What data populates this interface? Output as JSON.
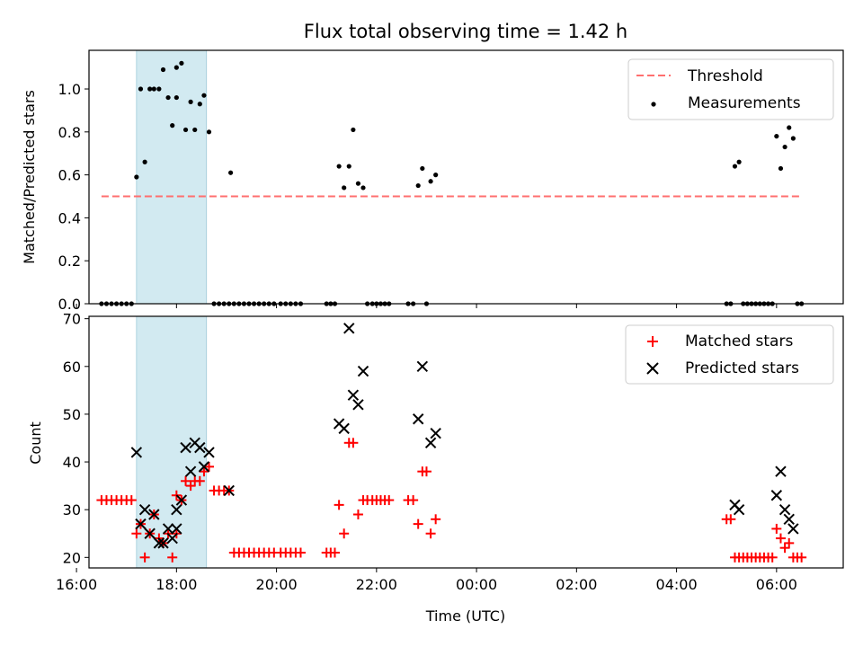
{
  "chart_data": [
    {
      "type": "scatter",
      "title": "Flux total observing time = 1.42 h",
      "xlabel": "",
      "ylabel": "Matched/Predicted stars",
      "ylim": [
        0,
        1.18
      ],
      "xlim": [
        "16:15",
        "07:20"
      ],
      "yticks": [
        "0.0",
        "0.2",
        "0.4",
        "0.6",
        "0.8",
        "1.0"
      ],
      "highlight_span": {
        "from": "17:12",
        "to": "18:36",
        "color": "#add8e6"
      },
      "threshold": {
        "name": "Threshold",
        "value": 0.5,
        "from": "16:30",
        "to": "06:30",
        "color": "#ff6f6f",
        "style": "dashed"
      },
      "legend": {
        "position": "upper right",
        "entries": [
          "Threshold",
          "Measurements"
        ]
      },
      "series": [
        {
          "name": "Measurements",
          "color": "#000000",
          "points": [
            [
              "16:30",
              0
            ],
            [
              "16:36",
              0
            ],
            [
              "16:42",
              0
            ],
            [
              "16:48",
              0
            ],
            [
              "16:54",
              0
            ],
            [
              "17:00",
              0
            ],
            [
              "17:06",
              0
            ],
            [
              "17:12",
              0.59
            ],
            [
              "17:17",
              1.0
            ],
            [
              "17:22",
              0.66
            ],
            [
              "17:28",
              1.0
            ],
            [
              "17:33",
              1.0
            ],
            [
              "17:39",
              1.0
            ],
            [
              "17:44",
              1.09
            ],
            [
              "17:50",
              0.96
            ],
            [
              "17:55",
              0.83
            ],
            [
              "18:00",
              0.96
            ],
            [
              "18:00",
              1.1
            ],
            [
              "18:06",
              1.12
            ],
            [
              "18:11",
              0.81
            ],
            [
              "18:17",
              0.94
            ],
            [
              "18:22",
              0.81
            ],
            [
              "18:28",
              0.93
            ],
            [
              "18:33",
              0.97
            ],
            [
              "18:39",
              0.8
            ],
            [
              "18:45",
              0
            ],
            [
              "18:51",
              0
            ],
            [
              "18:57",
              0
            ],
            [
              "19:03",
              0
            ],
            [
              "19:05",
              0.61
            ],
            [
              "19:09",
              0
            ],
            [
              "19:15",
              0
            ],
            [
              "19:21",
              0
            ],
            [
              "19:27",
              0
            ],
            [
              "19:33",
              0
            ],
            [
              "19:39",
              0
            ],
            [
              "19:45",
              0
            ],
            [
              "19:51",
              0
            ],
            [
              "19:57",
              0
            ],
            [
              "20:05",
              0
            ],
            [
              "20:11",
              0
            ],
            [
              "20:17",
              0
            ],
            [
              "20:23",
              0
            ],
            [
              "20:29",
              0
            ],
            [
              "21:00",
              0
            ],
            [
              "21:05",
              0
            ],
            [
              "21:10",
              0
            ],
            [
              "21:15",
              0.64
            ],
            [
              "21:21",
              0.54
            ],
            [
              "21:27",
              0.64
            ],
            [
              "21:32",
              0.81
            ],
            [
              "21:38",
              0.56
            ],
            [
              "21:44",
              0.54
            ],
            [
              "21:49",
              0
            ],
            [
              "21:55",
              0
            ],
            [
              "22:00",
              0
            ],
            [
              "22:05",
              0
            ],
            [
              "22:10",
              0
            ],
            [
              "22:15",
              0
            ],
            [
              "22:38",
              0
            ],
            [
              "22:44",
              0
            ],
            [
              "22:50",
              0.55
            ],
            [
              "22:55",
              0.63
            ],
            [
              "23:00",
              0
            ],
            [
              "23:05",
              0.57
            ],
            [
              "23:11",
              0.6
            ],
            [
              "05:00",
              0
            ],
            [
              "05:05",
              0
            ],
            [
              "05:10",
              0.64
            ],
            [
              "05:15",
              0.66
            ],
            [
              "05:20",
              0
            ],
            [
              "05:25",
              0
            ],
            [
              "05:30",
              0
            ],
            [
              "05:35",
              0
            ],
            [
              "05:40",
              0
            ],
            [
              "05:45",
              0
            ],
            [
              "05:50",
              0
            ],
            [
              "05:55",
              0
            ],
            [
              "06:00",
              0.78
            ],
            [
              "06:05",
              0.63
            ],
            [
              "06:10",
              0.73
            ],
            [
              "06:15",
              0.82
            ],
            [
              "06:20",
              0.77
            ],
            [
              "06:25",
              0
            ],
            [
              "06:30",
              0
            ]
          ]
        }
      ]
    },
    {
      "type": "scatter",
      "title": "",
      "xlabel": "Time (UTC)",
      "ylabel": "Count",
      "ylim": [
        17.8,
        70.5
      ],
      "xlim": [
        "16:15",
        "07:20"
      ],
      "yticks": [
        "20",
        "30",
        "40",
        "50",
        "60",
        "70"
      ],
      "xticks": [
        "16:00",
        "18:00",
        "20:00",
        "22:00",
        "00:00",
        "02:00",
        "04:00",
        "06:00"
      ],
      "highlight_span": {
        "from": "17:12",
        "to": "18:36",
        "color": "#add8e6"
      },
      "legend": {
        "position": "upper right",
        "entries": [
          "Matched stars",
          "Predicted stars"
        ]
      },
      "series": [
        {
          "name": "Matched stars",
          "marker": "plus",
          "color": "#ff0000",
          "points": [
            [
              "16:30",
              32
            ],
            [
              "16:36",
              32
            ],
            [
              "16:42",
              32
            ],
            [
              "16:48",
              32
            ],
            [
              "16:54",
              32
            ],
            [
              "17:00",
              32
            ],
            [
              "17:06",
              32
            ],
            [
              "17:12",
              25
            ],
            [
              "17:17",
              27
            ],
            [
              "17:22",
              20
            ],
            [
              "17:28",
              25
            ],
            [
              "17:33",
              29
            ],
            [
              "17:39",
              24
            ],
            [
              "17:44",
              23
            ],
            [
              "17:50",
              25
            ],
            [
              "17:55",
              20
            ],
            [
              "18:00",
              25
            ],
            [
              "18:00",
              33
            ],
            [
              "18:06",
              32
            ],
            [
              "18:11",
              36
            ],
            [
              "18:17",
              35
            ],
            [
              "18:22",
              36
            ],
            [
              "18:28",
              36
            ],
            [
              "18:33",
              38
            ],
            [
              "18:39",
              39
            ],
            [
              "18:45",
              34
            ],
            [
              "18:51",
              34
            ],
            [
              "18:57",
              34
            ],
            [
              "19:03",
              34
            ],
            [
              "19:09",
              21
            ],
            [
              "19:15",
              21
            ],
            [
              "19:21",
              21
            ],
            [
              "19:27",
              21
            ],
            [
              "19:33",
              21
            ],
            [
              "19:39",
              21
            ],
            [
              "19:45",
              21
            ],
            [
              "19:51",
              21
            ],
            [
              "19:57",
              21
            ],
            [
              "20:05",
              21
            ],
            [
              "20:11",
              21
            ],
            [
              "20:17",
              21
            ],
            [
              "20:23",
              21
            ],
            [
              "20:29",
              21
            ],
            [
              "21:00",
              21
            ],
            [
              "21:05",
              21
            ],
            [
              "21:10",
              21
            ],
            [
              "21:15",
              31
            ],
            [
              "21:21",
              25
            ],
            [
              "21:27",
              44
            ],
            [
              "21:32",
              44
            ],
            [
              "21:38",
              29
            ],
            [
              "21:44",
              32
            ],
            [
              "21:49",
              32
            ],
            [
              "21:55",
              32
            ],
            [
              "22:00",
              32
            ],
            [
              "22:05",
              32
            ],
            [
              "22:10",
              32
            ],
            [
              "22:15",
              32
            ],
            [
              "22:38",
              32
            ],
            [
              "22:44",
              32
            ],
            [
              "22:50",
              27
            ],
            [
              "22:55",
              38
            ],
            [
              "23:00",
              38
            ],
            [
              "23:05",
              25
            ],
            [
              "23:11",
              28
            ],
            [
              "05:00",
              28
            ],
            [
              "05:05",
              28
            ],
            [
              "05:10",
              20
            ],
            [
              "05:15",
              20
            ],
            [
              "05:20",
              20
            ],
            [
              "05:25",
              20
            ],
            [
              "05:30",
              20
            ],
            [
              "05:35",
              20
            ],
            [
              "05:40",
              20
            ],
            [
              "05:45",
              20
            ],
            [
              "05:50",
              20
            ],
            [
              "05:55",
              20
            ],
            [
              "06:00",
              26
            ],
            [
              "06:05",
              24
            ],
            [
              "06:10",
              22
            ],
            [
              "06:15",
              23
            ],
            [
              "06:20",
              20
            ],
            [
              "06:25",
              20
            ],
            [
              "06:30",
              20
            ]
          ]
        },
        {
          "name": "Predicted stars",
          "marker": "x",
          "color": "#000000",
          "points": [
            [
              "17:12",
              42
            ],
            [
              "17:17",
              27
            ],
            [
              "17:22",
              30
            ],
            [
              "17:28",
              25
            ],
            [
              "17:33",
              29
            ],
            [
              "17:39",
              23
            ],
            [
              "17:44",
              23
            ],
            [
              "17:50",
              26
            ],
            [
              "17:55",
              24
            ],
            [
              "18:00",
              26
            ],
            [
              "18:00",
              30
            ],
            [
              "18:06",
              32
            ],
            [
              "18:11",
              43
            ],
            [
              "18:17",
              38
            ],
            [
              "18:22",
              44
            ],
            [
              "18:28",
              43
            ],
            [
              "18:33",
              39
            ],
            [
              "18:39",
              42
            ],
            [
              "19:03",
              34
            ],
            [
              "21:15",
              48
            ],
            [
              "21:21",
              47
            ],
            [
              "21:27",
              68
            ],
            [
              "21:32",
              54
            ],
            [
              "21:38",
              52
            ],
            [
              "21:44",
              59
            ],
            [
              "22:50",
              49
            ],
            [
              "22:55",
              60
            ],
            [
              "23:05",
              44
            ],
            [
              "23:11",
              46
            ],
            [
              "05:10",
              31
            ],
            [
              "05:15",
              30
            ],
            [
              "06:00",
              33
            ],
            [
              "06:05",
              38
            ],
            [
              "06:10",
              30
            ],
            [
              "06:15",
              28
            ],
            [
              "06:20",
              26
            ]
          ]
        }
      ]
    }
  ]
}
